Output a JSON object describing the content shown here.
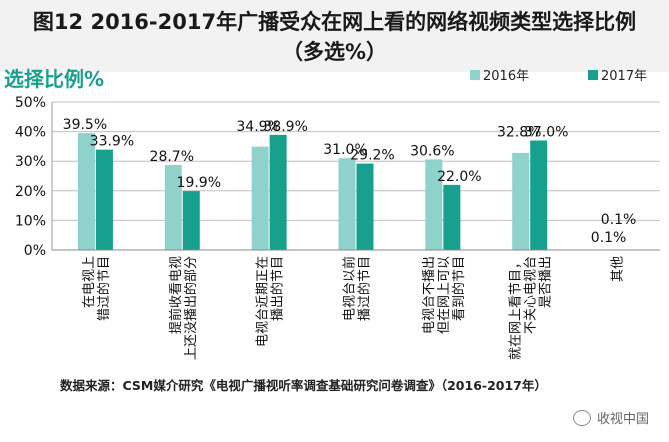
{
  "header": {
    "title_line1": "图12 2016-2017年广播受众在网上看的网络视频类型选择比例",
    "title_line2": "（多选%）"
  },
  "colors": {
    "series_2016": "#8fd1cb",
    "series_2017": "#17a08e",
    "heading": "#17a08e",
    "grid": "#bfbfbf"
  },
  "chart_data": {
    "type": "bar",
    "title": "选择比例%",
    "xlabel": "",
    "ylabel": "",
    "ylim": [
      0,
      50
    ],
    "yticks": [
      "0%",
      "10%",
      "20%",
      "30%",
      "40%",
      "50%"
    ],
    "categories": [
      [
        "在电视上",
        "错过的节目"
      ],
      [
        "提前收看电视",
        "上还没播出的部分"
      ],
      [
        "电视台近期正在",
        "播出的节目"
      ],
      [
        "电视台以前",
        "播过的节目"
      ],
      [
        "电视台不播出",
        "但在网上可以",
        "看到的节目"
      ],
      [
        "就在网上看节目，",
        "不关心电视台",
        "是否播出"
      ],
      [
        "其他"
      ]
    ],
    "series": [
      {
        "name": "2016年",
        "values": [
          39.5,
          28.7,
          34.9,
          31.0,
          30.6,
          32.8,
          0.1
        ],
        "labels": [
          "39.5%",
          "28.7%",
          "34.9%",
          "31.0%",
          "30.6%",
          "32.8%",
          "0.1%"
        ]
      },
      {
        "name": "2017年",
        "values": [
          33.9,
          19.9,
          38.9,
          29.2,
          22.0,
          37.0,
          0.1
        ],
        "labels": [
          "33.9%",
          "19.9%",
          "38.9%",
          "29.2%",
          "22.0%",
          "37.0%",
          "0.1%"
        ]
      }
    ],
    "legend_position": "top-right"
  },
  "footer": {
    "source": "数据来源：CSM媒介研究《电视广播视听率调查基础研究问卷调查》（2016-2017年）",
    "watermark": "收视中国"
  }
}
